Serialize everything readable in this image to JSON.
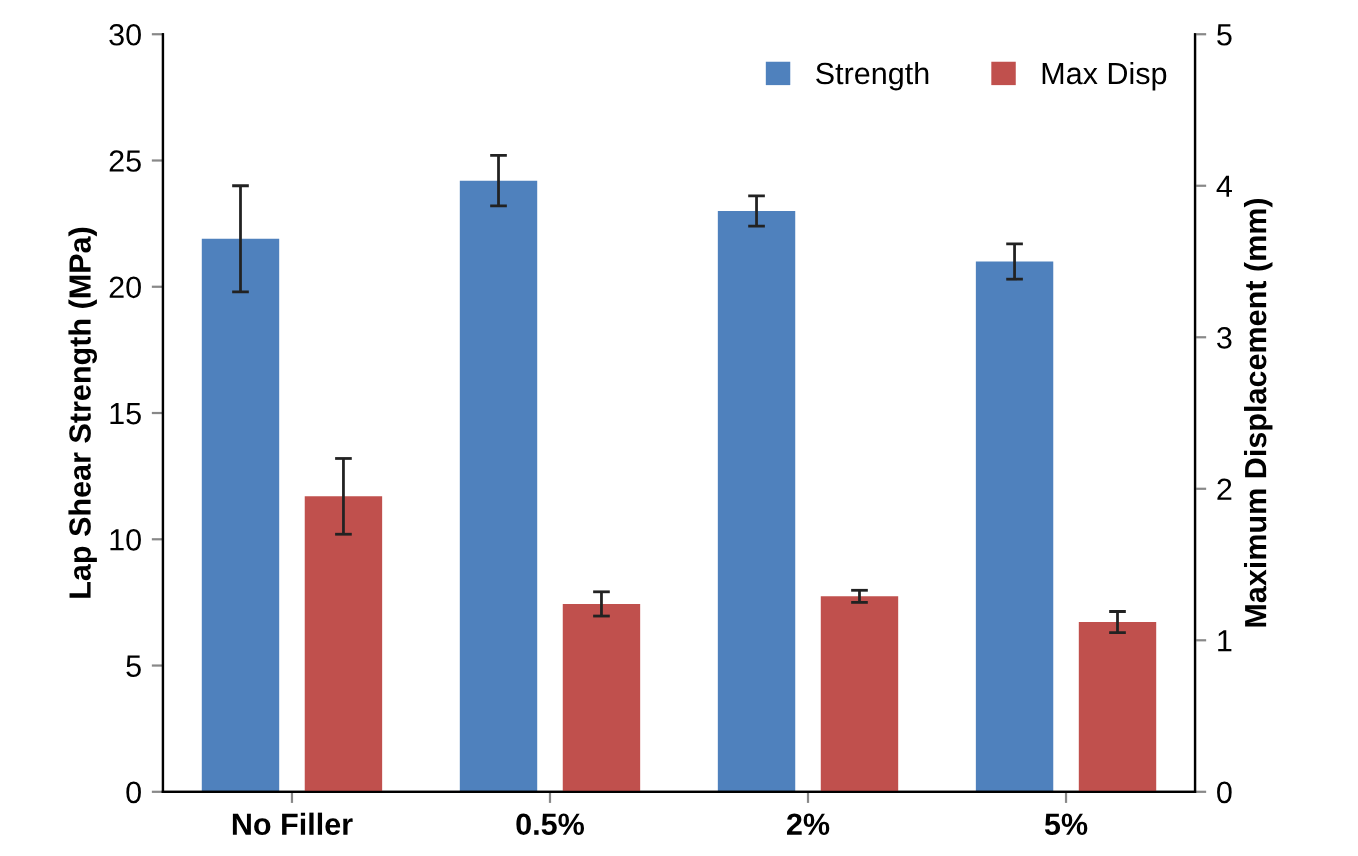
{
  "chart_data": {
    "type": "bar",
    "categories": [
      "No Filler",
      "0.5%",
      "2%",
      "5%"
    ],
    "ylabel": "Lap Shear Strength (MPa)",
    "y2label": "Maximum Displacement (mm)",
    "series": [
      {
        "name": "Strength",
        "color": "#4f81bd",
        "values": [
          21.9,
          24.2,
          23.0,
          21.0
        ],
        "errors": [
          2.1,
          1.0,
          0.6,
          0.7
        ]
      },
      {
        "name": "Max Disp",
        "color": "#c0504d",
        "axis": "y2",
        "values": [
          1.95,
          1.24,
          1.29,
          1.12
        ],
        "errors": [
          0.25,
          0.08,
          0.04,
          0.07
        ]
      }
    ],
    "ylim": [
      0,
      30
    ],
    "yticks": [
      0,
      5,
      10,
      15,
      20,
      25,
      30
    ],
    "y2lim": [
      0,
      5
    ],
    "y2ticks": [
      0,
      1,
      2,
      3,
      4,
      5
    ],
    "grid": false,
    "legend": "top right"
  }
}
